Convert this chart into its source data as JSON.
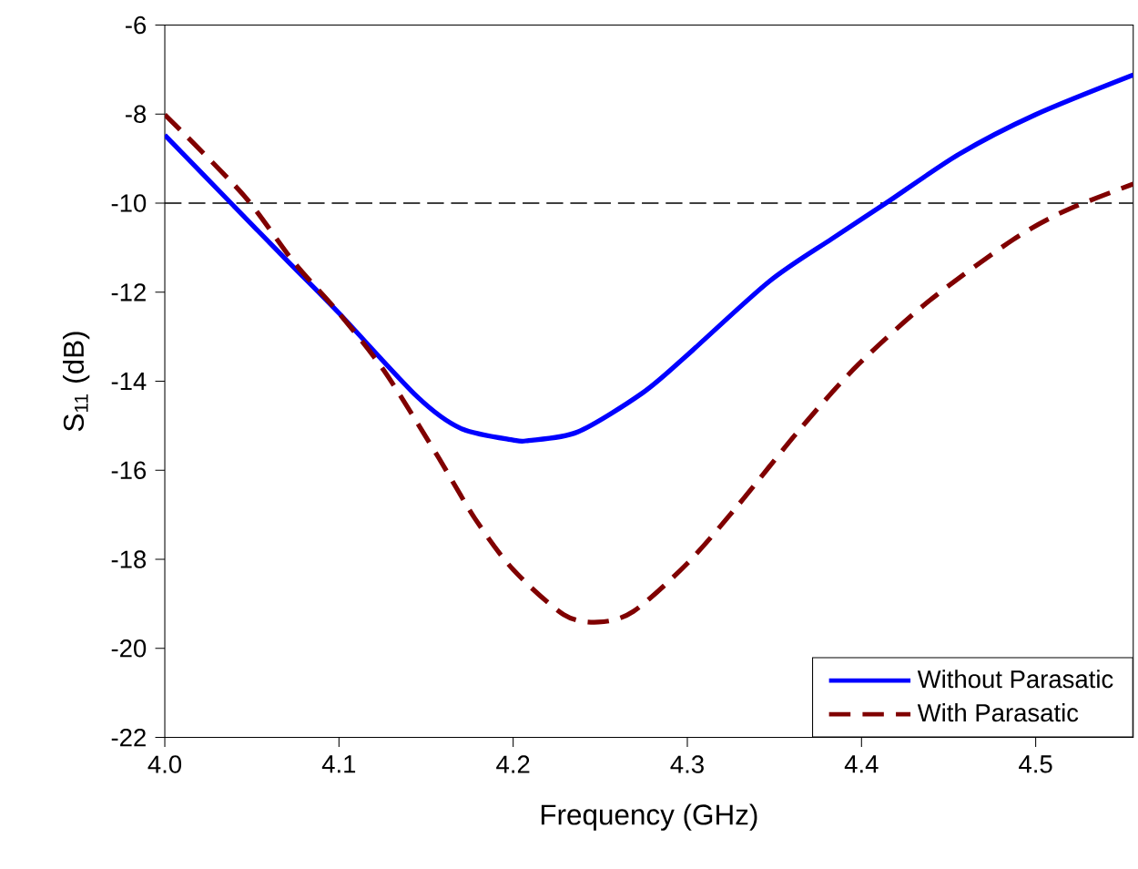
{
  "chart_data": {
    "type": "line",
    "xlabel": "Frequency (GHz)",
    "ylabel": "S$_{11}$  (dB)",
    "xlim": [
      4.0,
      4.556
    ],
    "ylim": [
      -22,
      -6
    ],
    "xticks": [
      {
        "value": 4.0,
        "label": "4.0"
      },
      4.1,
      4.2,
      4.3,
      4.4,
      4.5
    ],
    "yticks": [
      -22,
      -20,
      -18,
      -16,
      -14,
      -12,
      -10,
      -8,
      -6
    ],
    "grid": false,
    "legend": "bottom right",
    "marker": "none",
    "ref_lines": [
      {
        "axis": "y",
        "value": -10,
        "color": "#000000",
        "line_style": "dashed"
      }
    ],
    "series": [
      {
        "name": "Without Parasatic",
        "color": "#0000ff",
        "line_style": "solid",
        "x": [
          4.0,
          4.038,
          4.071,
          4.1,
          4.145,
          4.17,
          4.2,
          4.209,
          4.237,
          4.274,
          4.3,
          4.347,
          4.383,
          4.414,
          4.456,
          4.5,
          4.556
        ],
        "values": [
          -8.47,
          -10.0,
          -11.32,
          -12.47,
          -14.35,
          -15.06,
          -15.32,
          -15.33,
          -15.14,
          -14.27,
          -13.41,
          -11.76,
          -10.8,
          -10.0,
          -8.9,
          -8.01,
          -7.12
        ]
      },
      {
        "name": "With Parasatic",
        "color": "#800000",
        "line_style": "dashed",
        "x": [
          4.0,
          4.045,
          4.074,
          4.1,
          4.126,
          4.156,
          4.178,
          4.2,
          4.229,
          4.249,
          4.269,
          4.3,
          4.329,
          4.365,
          4.398,
          4.439,
          4.487,
          4.517,
          4.556
        ],
        "values": [
          -8.01,
          -9.81,
          -11.32,
          -12.47,
          -13.77,
          -15.64,
          -17.08,
          -18.23,
          -19.24,
          -19.41,
          -19.17,
          -18.09,
          -16.79,
          -15.06,
          -13.63,
          -12.19,
          -10.82,
          -10.17,
          -9.57
        ]
      }
    ]
  }
}
